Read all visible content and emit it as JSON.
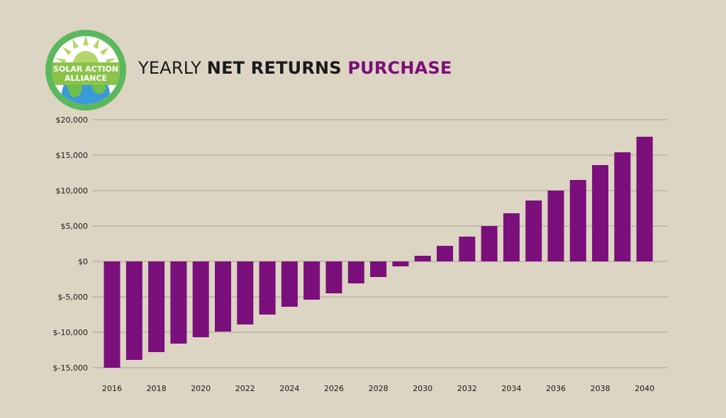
{
  "logo": {
    "line1": "SOLAR ACTION",
    "line2": "ALLIANCE",
    "ring_color": "#5cb85c",
    "sun_color": "#b5d66a",
    "globe_color": "#3a9ad9",
    "band_color": "#8bc34a"
  },
  "title": {
    "part1": "YEARLY ",
    "part2": "NET RETURNS ",
    "part3": "PURCHASE",
    "accent_color": "#7b0f7b"
  },
  "chart_data": {
    "type": "bar",
    "bar_color": "#7b0f7b",
    "grid": true,
    "ylim": [
      -15000,
      20000
    ],
    "yticks": [
      20000,
      15000,
      10000,
      5000,
      0,
      -5000,
      -10000,
      -15000
    ],
    "ytick_labels": [
      "$20,000",
      "$15,000",
      "$10,000",
      "$5,000",
      "$0",
      "$-5,000",
      "$-10,000",
      "$-15,000"
    ],
    "categories": [
      "2016",
      "2017",
      "2018",
      "2019",
      "2020",
      "2021",
      "2022",
      "2023",
      "2024",
      "2025",
      "2026",
      "2027",
      "2028",
      "2029",
      "2030",
      "2031",
      "2032",
      "2033",
      "2034",
      "2035",
      "2036",
      "2037",
      "2038",
      "2039",
      "2040"
    ],
    "xtick_labels": [
      "2016",
      "",
      "2018",
      "",
      "2020",
      "",
      "2022",
      "",
      "2024",
      "",
      "2026",
      "",
      "2028",
      "",
      "2030",
      "",
      "2032",
      "",
      "2034",
      "",
      "2036",
      "",
      "2038",
      "",
      "2040"
    ],
    "values": [
      -15000,
      -13900,
      -12800,
      -11600,
      -10700,
      -9900,
      -8900,
      -7500,
      -6400,
      -5400,
      -4500,
      -3100,
      -2200,
      -700,
      800,
      2200,
      3500,
      5000,
      6800,
      8600,
      10000,
      11500,
      13600,
      15400,
      17600
    ]
  }
}
